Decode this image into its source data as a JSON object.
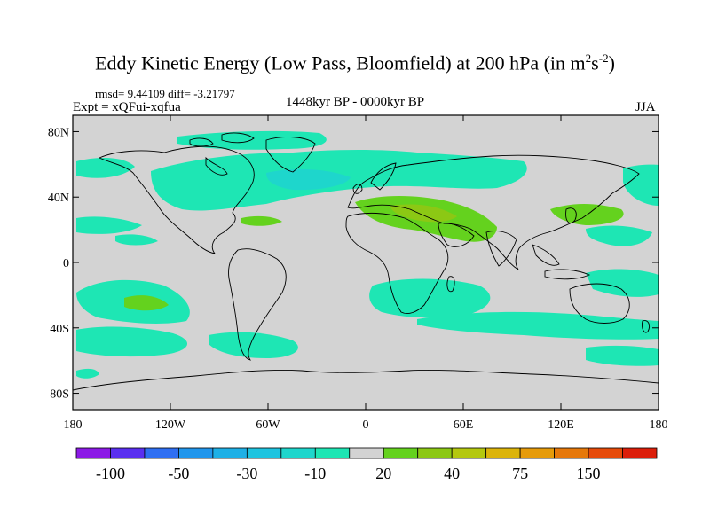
{
  "title": {
    "main": "Eddy Kinetic Energy (Low Pass, Bloomfield) at 200 hPa (in m",
    "sup1": "2",
    "mid": "s",
    "sup2": "-2",
    "end": ")"
  },
  "stats": "rmsd= 9.44109 diff= -3.21797",
  "experiment": "Expt = xQFui-xqfua",
  "period": "1448kyr BP - 0000kyr BP",
  "season": "JJA",
  "map": {
    "background_color": "#d3d3d3",
    "lat_ticks": [
      {
        "value": 80,
        "label": "80N"
      },
      {
        "value": 40,
        "label": "40N"
      },
      {
        "value": 0,
        "label": "0"
      },
      {
        "value": -40,
        "label": "40S"
      },
      {
        "value": -80,
        "label": "80S"
      }
    ],
    "lon_ticks": [
      {
        "value": -180,
        "label": "180"
      },
      {
        "value": -120,
        "label": "120W"
      },
      {
        "value": -60,
        "label": "60W"
      },
      {
        "value": 0,
        "label": "0"
      },
      {
        "value": 60,
        "label": "60E"
      },
      {
        "value": 120,
        "label": "120E"
      },
      {
        "value": 180,
        "label": "180"
      }
    ]
  },
  "colorbar": {
    "colors": [
      "#8c1ae6",
      "#5a2ff0",
      "#2f6ff2",
      "#2196ec",
      "#1eb0e6",
      "#1ec4e0",
      "#1ed6cc",
      "#1ee6b4",
      "#d3d3d3",
      "#64d21e",
      "#8cc814",
      "#b4c80f",
      "#dcb40a",
      "#e69b0a",
      "#e6780a",
      "#e64b0a",
      "#dc1e0a"
    ],
    "labels": [
      {
        "boundary": 1,
        "text": "-100"
      },
      {
        "boundary": 3,
        "text": "-50"
      },
      {
        "boundary": 5,
        "text": "-30"
      },
      {
        "boundary": 7,
        "text": "-10"
      },
      {
        "boundary": 9,
        "text": "20"
      },
      {
        "boundary": 11,
        "text": "40"
      },
      {
        "boundary": 13,
        "text": "75"
      },
      {
        "boundary": 15,
        "text": "150"
      }
    ]
  },
  "anomaly_colors": {
    "neg_weak": "#1ee6b4",
    "neg_mid": "#1ed6cc",
    "neg_strong": "#1eb0e6",
    "pos_weak": "#64d21e",
    "pos_mid": "#8cc814"
  }
}
